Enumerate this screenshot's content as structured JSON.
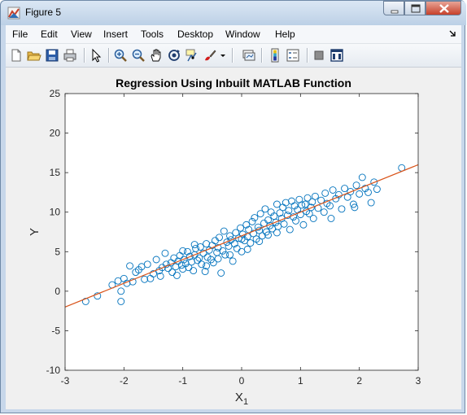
{
  "window": {
    "title": "Figure 5",
    "colors": {
      "titlebar": "#bcd0e6",
      "close": "#c7402a"
    }
  },
  "menubar": {
    "items": [
      "File",
      "Edit",
      "View",
      "Insert",
      "Tools",
      "Desktop",
      "Window",
      "Help"
    ],
    "overflow_icon": "dock-arrow-icon"
  },
  "toolbar": {
    "icons": [
      "new-figure-icon",
      "open-file-icon",
      "save-icon",
      "print-icon",
      "pointer-icon",
      "zoom-in-icon",
      "zoom-out-icon",
      "pan-icon",
      "rotate-3d-icon",
      "data-cursor-icon",
      "brush-icon",
      "dropdown-arrow-icon",
      "link-plot-icon",
      "colorbar-icon",
      "legend-icon",
      "hide-plot-tools-icon",
      "show-plot-tools-icon"
    ]
  },
  "chart_data": {
    "type": "scatter",
    "title": "Regression Using Inbuilt MATLAB Function",
    "xlabel": "X",
    "xlabel_subscript": "1",
    "ylabel": "Y",
    "xlim": [
      -3,
      3
    ],
    "ylim": [
      -10,
      25
    ],
    "xticks": [
      "-3",
      "-2",
      "-1",
      "0",
      "1",
      "2",
      "3"
    ],
    "yticks": [
      "-10",
      "-5",
      "0",
      "5",
      "10",
      "15",
      "20",
      "25"
    ],
    "marker_color": "#0072bd",
    "line_color": "#d95319",
    "regression_line": {
      "x": [
        -3,
        3
      ],
      "y": [
        -2.0,
        16.0
      ]
    },
    "points": [
      [
        -2.65,
        -1.3
      ],
      [
        -2.45,
        -0.6
      ],
      [
        -2.2,
        0.8
      ],
      [
        -2.1,
        1.3
      ],
      [
        -2.05,
        -1.3
      ],
      [
        -2.05,
        0.0
      ],
      [
        -2.0,
        1.6
      ],
      [
        -1.95,
        1.0
      ],
      [
        -1.9,
        3.2
      ],
      [
        -1.85,
        1.2
      ],
      [
        -1.8,
        2.4
      ],
      [
        -1.75,
        2.7
      ],
      [
        -1.7,
        3.1
      ],
      [
        -1.65,
        1.5
      ],
      [
        -1.6,
        3.4
      ],
      [
        -1.55,
        1.6
      ],
      [
        -1.5,
        2.2
      ],
      [
        -1.45,
        4.0
      ],
      [
        -1.4,
        2.6
      ],
      [
        -1.38,
        1.9
      ],
      [
        -1.35,
        3.0
      ],
      [
        -1.3,
        4.8
      ],
      [
        -1.28,
        3.4
      ],
      [
        -1.25,
        2.9
      ],
      [
        -1.2,
        3.6
      ],
      [
        -1.18,
        2.4
      ],
      [
        -1.15,
        4.2
      ],
      [
        -1.12,
        3.1
      ],
      [
        -1.1,
        2.0
      ],
      [
        -1.08,
        3.8
      ],
      [
        -1.05,
        4.5
      ],
      [
        -1.02,
        3.3
      ],
      [
        -1.0,
        2.8
      ],
      [
        -0.98,
        4.0
      ],
      [
        -0.95,
        3.5
      ],
      [
        -0.92,
        5.0
      ],
      [
        -0.9,
        3.0
      ],
      [
        -0.88,
        4.4
      ],
      [
        -0.85,
        3.7
      ],
      [
        -0.82,
        2.6
      ],
      [
        -0.8,
        4.6
      ],
      [
        -0.78,
        5.4
      ],
      [
        -0.75,
        3.9
      ],
      [
        -0.72,
        4.2
      ],
      [
        -0.7,
        5.6
      ],
      [
        -0.68,
        3.4
      ],
      [
        -0.65,
        4.8
      ],
      [
        -0.62,
        2.5
      ],
      [
        -0.6,
        6.0
      ],
      [
        -0.58,
        4.3
      ],
      [
        -0.55,
        5.2
      ],
      [
        -0.52,
        4.0
      ],
      [
        -0.5,
        5.8
      ],
      [
        -0.48,
        3.6
      ],
      [
        -0.45,
        6.4
      ],
      [
        -0.42,
        4.9
      ],
      [
        -0.4,
        5.5
      ],
      [
        -0.38,
        6.8
      ],
      [
        -0.35,
        2.3
      ],
      [
        -0.32,
        5.1
      ],
      [
        -0.3,
        7.6
      ],
      [
        -0.28,
        4.6
      ],
      [
        -0.25,
        6.2
      ],
      [
        -0.22,
        5.7
      ],
      [
        -0.2,
        7.0
      ],
      [
        -0.18,
        6.5
      ],
      [
        -0.15,
        3.8
      ],
      [
        -0.12,
        6.0
      ],
      [
        -0.1,
        7.4
      ],
      [
        -0.08,
        5.4
      ],
      [
        -0.05,
        6.7
      ],
      [
        -0.02,
        8.0
      ],
      [
        0.0,
        5.0
      ],
      [
        0.02,
        7.2
      ],
      [
        0.05,
        6.4
      ],
      [
        0.08,
        8.4
      ],
      [
        0.1,
        6.9
      ],
      [
        0.12,
        7.8
      ],
      [
        0.15,
        6.1
      ],
      [
        0.18,
        8.8
      ],
      [
        0.2,
        7.3
      ],
      [
        0.22,
        9.3
      ],
      [
        0.25,
        6.6
      ],
      [
        0.28,
        8.1
      ],
      [
        0.3,
        7.7
      ],
      [
        0.32,
        9.8
      ],
      [
        0.35,
        7.0
      ],
      [
        0.38,
        8.6
      ],
      [
        0.4,
        10.4
      ],
      [
        0.42,
        7.5
      ],
      [
        0.45,
        9.0
      ],
      [
        0.48,
        8.3
      ],
      [
        0.5,
        10.0
      ],
      [
        0.52,
        7.9
      ],
      [
        0.55,
        9.5
      ],
      [
        0.58,
        8.7
      ],
      [
        0.6,
        11.0
      ],
      [
        0.62,
        8.2
      ],
      [
        0.65,
        9.9
      ],
      [
        0.68,
        9.2
      ],
      [
        0.7,
        10.6
      ],
      [
        0.72,
        8.5
      ],
      [
        0.75,
        11.2
      ],
      [
        0.78,
        9.6
      ],
      [
        0.8,
        10.2
      ],
      [
        0.82,
        7.8
      ],
      [
        0.85,
        11.4
      ],
      [
        0.88,
        9.4
      ],
      [
        0.9,
        10.8
      ],
      [
        0.92,
        8.9
      ],
      [
        0.95,
        10.3
      ],
      [
        0.98,
        11.6
      ],
      [
        1.0,
        9.7
      ],
      [
        1.02,
        10.9
      ],
      [
        1.05,
        8.4
      ],
      [
        1.08,
        11.0
      ],
      [
        1.1,
        10.1
      ],
      [
        1.12,
        11.8
      ],
      [
        1.15,
        9.8
      ],
      [
        1.18,
        10.6
      ],
      [
        1.2,
        11.3
      ],
      [
        1.22,
        9.2
      ],
      [
        1.25,
        12.0
      ],
      [
        1.3,
        10.5
      ],
      [
        1.35,
        11.5
      ],
      [
        1.4,
        10.0
      ],
      [
        1.42,
        12.4
      ],
      [
        1.45,
        11.1
      ],
      [
        1.5,
        10.8
      ],
      [
        1.52,
        9.2
      ],
      [
        1.55,
        12.8
      ],
      [
        1.6,
        11.7
      ],
      [
        1.65,
        12.2
      ],
      [
        1.7,
        10.4
      ],
      [
        1.75,
        13.0
      ],
      [
        1.8,
        11.9
      ],
      [
        1.85,
        12.6
      ],
      [
        1.9,
        11.0
      ],
      [
        1.92,
        10.6
      ],
      [
        1.95,
        13.4
      ],
      [
        2.0,
        12.3
      ],
      [
        2.05,
        14.4
      ],
      [
        2.1,
        13.0
      ],
      [
        2.15,
        12.5
      ],
      [
        2.2,
        11.2
      ],
      [
        2.25,
        13.8
      ],
      [
        2.3,
        12.9
      ],
      [
        2.72,
        15.6
      ],
      [
        -0.6,
        3.2
      ],
      [
        -0.4,
        4.1
      ],
      [
        -0.2,
        4.6
      ],
      [
        0.0,
        6.6
      ],
      [
        0.1,
        5.3
      ],
      [
        0.3,
        6.3
      ],
      [
        0.45,
        7.1
      ],
      [
        0.6,
        7.4
      ],
      [
        -1.0,
        5.1
      ],
      [
        -0.8,
        5.9
      ]
    ]
  }
}
